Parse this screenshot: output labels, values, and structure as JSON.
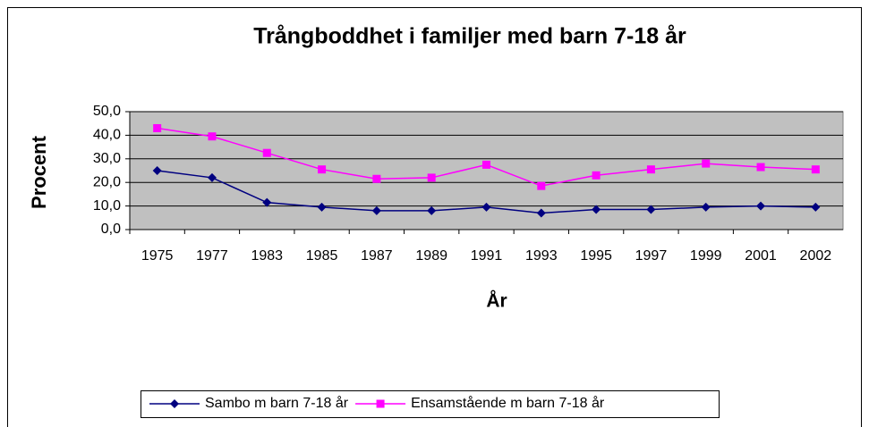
{
  "chart_data": {
    "type": "line",
    "title": "Trångboddhet i familjer med barn 7-18 år",
    "x_label": "År",
    "y_label": "Procent",
    "categories": [
      "1975",
      "1977",
      "1983",
      "1985",
      "1987",
      "1989",
      "1991",
      "1993",
      "1995",
      "1997",
      "1999",
      "2001",
      "2002"
    ],
    "series": [
      {
        "name": "Sambo m barn 7-18 år",
        "color": "#000080",
        "marker": "diamond",
        "values": [
          25,
          22,
          11.5,
          9.5,
          8,
          8,
          9.5,
          7,
          8.5,
          8.5,
          9.5,
          10,
          9.5
        ]
      },
      {
        "name": "Ensamstående m barn 7-18 år",
        "color": "#ff00ff",
        "marker": "square",
        "values": [
          43,
          39.5,
          32.5,
          25.5,
          21.5,
          22,
          27.5,
          18.5,
          23,
          25.5,
          28,
          26.5,
          25.5
        ]
      }
    ],
    "ylim": [
      0,
      50
    ],
    "yticks": [
      {
        "value": 0,
        "label": "0,0"
      },
      {
        "value": 10,
        "label": "10,0"
      },
      {
        "value": 20,
        "label": "20,0"
      },
      {
        "value": 30,
        "label": "30,0"
      },
      {
        "value": 40,
        "label": "40,0"
      },
      {
        "value": 50,
        "label": "50,0"
      }
    ],
    "grid": true,
    "plot_background": "#c0c0c0",
    "legend": "bottom"
  }
}
